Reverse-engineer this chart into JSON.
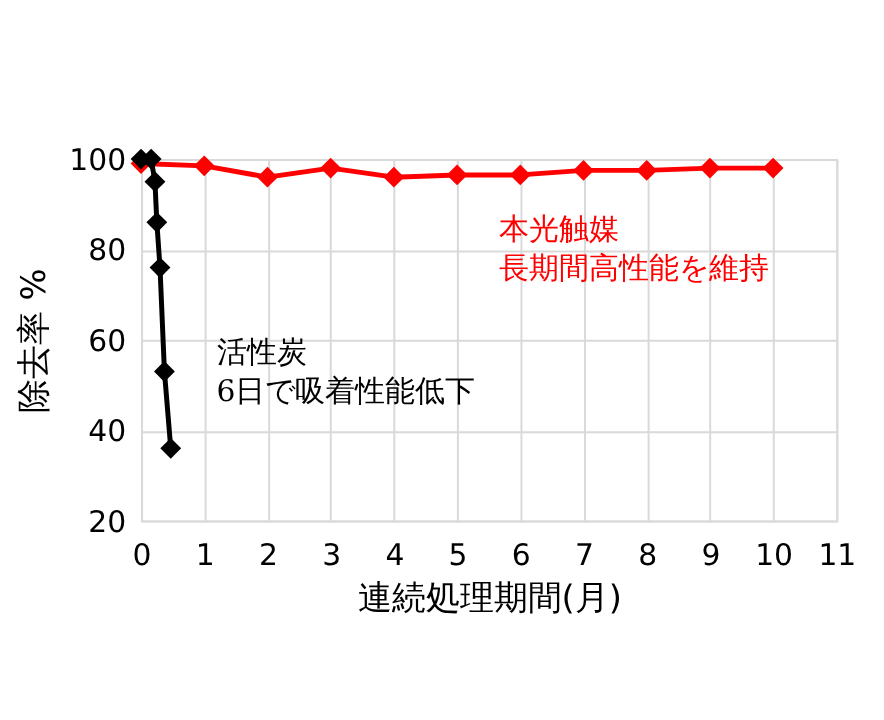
{
  "chart_data": {
    "type": "line",
    "xlabel": "連続処理期間(月)",
    "ylabel": "除去率 %",
    "xlim": [
      0,
      11
    ],
    "xticks": [
      0,
      1,
      2,
      3,
      4,
      5,
      6,
      7,
      8,
      9,
      10,
      11
    ],
    "ylim": [
      20,
      100
    ],
    "yticks": [
      20,
      40,
      60,
      80,
      100
    ],
    "grid": true,
    "legend": false,
    "marker": "diamond",
    "line_style": "solid",
    "series": [
      {
        "name": "本光触媒",
        "color": "#ff0000",
        "x": [
          0,
          1,
          2,
          3,
          4,
          5,
          6,
          7,
          8,
          9,
          10
        ],
        "values": [
          99,
          98.5,
          96,
          98,
          96,
          96.5,
          96.5,
          97.5,
          97.5,
          98,
          98
        ]
      },
      {
        "name": "活性炭",
        "color": "#000000",
        "x": [
          0,
          0.16,
          0.22,
          0.25,
          0.3,
          0.37,
          0.47
        ],
        "values": [
          100,
          100,
          95,
          86,
          76,
          53,
          36
        ]
      }
    ],
    "annotations": [
      "長期間高性能を維持",
      "6日で吸着性能低下"
    ]
  }
}
